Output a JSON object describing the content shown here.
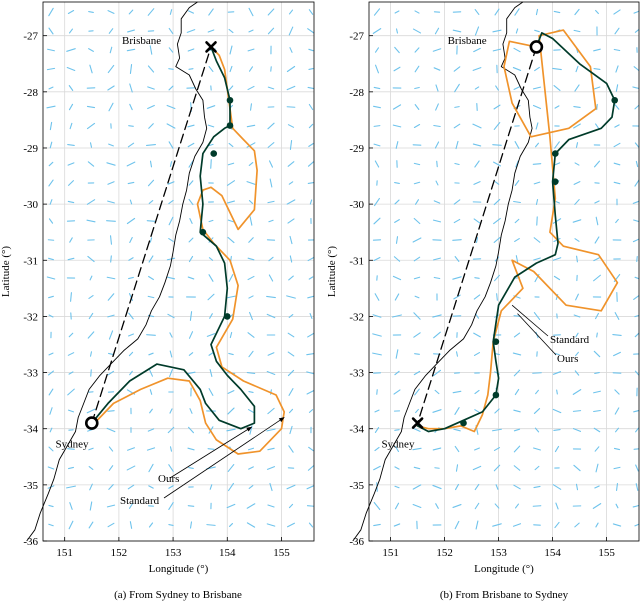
{
  "colors": {
    "ours": "#003b2a",
    "standard": "#f0932b",
    "straight": "#000000",
    "current_arrows": "#6ec3ec",
    "grid": "#d9d9d9"
  },
  "chart_data": [
    {
      "type": "line",
      "panel": "a",
      "caption": "(a) From Sydney to Brisbane",
      "xlabel": "Longitude (°)",
      "ylabel": "Latitude (°)",
      "xlim": [
        150.6,
        155.6
      ],
      "ylim": [
        -36,
        -26.4
      ],
      "xticks": [
        151,
        152,
        153,
        154,
        155
      ],
      "yticks": [
        -27,
        -28,
        -29,
        -30,
        -31,
        -32,
        -33,
        -34,
        -35,
        -36
      ],
      "grid": true,
      "cities": [
        {
          "name": "Brisbane",
          "x": 153.02,
          "y": -27.47
        },
        {
          "name": "Sydney",
          "x": 151.21,
          "y": -33.87
        }
      ],
      "start": {
        "x": 151.5,
        "y": -33.9,
        "marker": "circle"
      },
      "end": {
        "x": 153.7,
        "y": -27.2,
        "marker": "cross"
      },
      "annotations": [
        {
          "text": "Ours",
          "target": [
            154.45,
            -33.97
          ]
        },
        {
          "text": "Standard",
          "target": [
            155.05,
            -33.8
          ]
        }
      ],
      "series": [
        {
          "name": "Ours",
          "color": "#003b2a",
          "x": [
            151.5,
            151.8,
            152.2,
            152.7,
            153.2,
            153.5,
            153.6,
            153.85,
            154.25,
            154.5,
            154.5,
            154.25,
            154.0,
            153.8,
            153.7,
            153.95,
            154.0,
            153.95,
            153.8,
            153.5,
            153.55,
            153.5,
            153.55,
            153.75,
            153.95,
            154.05,
            154.05,
            153.95,
            153.8,
            153.7
          ],
          "y": [
            -33.9,
            -33.55,
            -33.15,
            -32.85,
            -32.95,
            -33.3,
            -33.55,
            -33.85,
            -34.0,
            -33.9,
            -33.6,
            -33.3,
            -33.05,
            -32.8,
            -32.5,
            -32.0,
            -31.5,
            -31.05,
            -30.75,
            -30.5,
            -30.0,
            -29.5,
            -29.1,
            -28.8,
            -28.65,
            -28.6,
            -28.15,
            -27.75,
            -27.45,
            -27.2
          ]
        },
        {
          "name": "Standard",
          "color": "#f0932b",
          "x": [
            151.55,
            151.9,
            152.4,
            152.9,
            153.3,
            153.5,
            153.6,
            153.8,
            154.2,
            154.6,
            155.0,
            155.05,
            154.9,
            154.3,
            153.9,
            153.8,
            154.1,
            154.2,
            154.05,
            153.75,
            153.55,
            153.45,
            153.55,
            153.7,
            153.9,
            154.2,
            154.5,
            154.55,
            154.5,
            154.3,
            154.1,
            154.05,
            154.0,
            153.95,
            153.85,
            153.7
          ],
          "y": [
            -33.9,
            -33.55,
            -33.3,
            -33.1,
            -33.15,
            -33.5,
            -33.9,
            -34.2,
            -34.45,
            -34.4,
            -34.0,
            -33.7,
            -33.4,
            -33.15,
            -32.9,
            -32.55,
            -32.05,
            -31.45,
            -31.0,
            -30.7,
            -30.45,
            -30.0,
            -29.75,
            -29.7,
            -29.85,
            -30.45,
            -30.1,
            -29.4,
            -29.05,
            -28.85,
            -28.65,
            -28.3,
            -27.95,
            -27.6,
            -27.35,
            -27.2
          ]
        },
        {
          "name": "",
          "style": "dashed",
          "color": "#000000",
          "x": [
            151.5,
            153.7
          ],
          "y": [
            -33.9,
            -27.2
          ]
        }
      ],
      "waypoints": {
        "x": [
          154.05,
          154.05,
          153.75,
          153.55,
          154.0
        ],
        "y": [
          -28.15,
          -28.6,
          -29.1,
          -30.5,
          -32.0
        ]
      }
    },
    {
      "type": "line",
      "panel": "b",
      "caption": "(b) From Brisbane to Sydney",
      "xlabel": "Longitude (°)",
      "ylabel": "Latitude (°)",
      "xlim": [
        150.6,
        155.6
      ],
      "ylim": [
        -36,
        -26.4
      ],
      "xticks": [
        151,
        152,
        153,
        154,
        155
      ],
      "yticks": [
        -27,
        -28,
        -29,
        -30,
        -31,
        -32,
        -33,
        -34,
        -35,
        -36
      ],
      "grid": true,
      "cities": [
        {
          "name": "Brisbane",
          "x": 153.02,
          "y": -27.47
        },
        {
          "name": "Sydney",
          "x": 151.21,
          "y": -33.87
        }
      ],
      "start": {
        "x": 153.7,
        "y": -27.2,
        "marker": "circle"
      },
      "end": {
        "x": 151.5,
        "y": -33.9,
        "marker": "cross"
      },
      "annotations": [
        {
          "text": "Standard",
          "target": [
            153.25,
            -31.8
          ]
        },
        {
          "text": "Ours",
          "target": [
            153.35,
            -31.95
          ]
        }
      ],
      "series": [
        {
          "name": "Ours",
          "color": "#003b2a",
          "x": [
            153.7,
            153.8,
            154.0,
            154.5,
            155.0,
            155.15,
            155.1,
            154.9,
            154.6,
            154.3,
            154.05,
            154.0,
            154.05,
            154.1,
            154.05,
            153.7,
            153.3,
            153.0,
            152.9,
            152.95,
            153.0,
            152.95,
            152.7,
            152.35,
            152.0,
            151.7,
            151.5
          ],
          "y": [
            -27.2,
            -26.95,
            -27.05,
            -27.5,
            -27.85,
            -28.15,
            -28.45,
            -28.65,
            -28.75,
            -28.85,
            -29.1,
            -29.6,
            -30.2,
            -30.7,
            -30.9,
            -31.05,
            -31.3,
            -31.8,
            -32.45,
            -32.8,
            -33.1,
            -33.4,
            -33.7,
            -33.85,
            -34.0,
            -34.05,
            -33.95
          ]
        },
        {
          "name": "Standard",
          "color": "#f0932b",
          "x": [
            153.7,
            153.2,
            153.1,
            153.25,
            153.6,
            154.3,
            154.8,
            154.7,
            154.2,
            153.75,
            153.95,
            154.05,
            153.95,
            154.2,
            154.85,
            155.2,
            154.9,
            154.25,
            153.65,
            153.25,
            153.45,
            153.3,
            153.05,
            152.9,
            152.85,
            152.8,
            152.7,
            152.55,
            152.3,
            152.0,
            151.7,
            151.5
          ],
          "y": [
            -27.2,
            -27.1,
            -27.55,
            -28.2,
            -28.8,
            -28.65,
            -28.3,
            -27.55,
            -26.9,
            -27.0,
            -28.8,
            -29.9,
            -30.5,
            -30.75,
            -30.9,
            -31.4,
            -31.9,
            -31.8,
            -31.2,
            -31.0,
            -31.5,
            -31.65,
            -31.9,
            -32.45,
            -33.0,
            -33.4,
            -33.75,
            -34.05,
            -33.95,
            -34.0,
            -34.0,
            -33.95
          ]
        },
        {
          "name": "",
          "style": "dashed",
          "color": "#000000",
          "x": [
            153.7,
            151.5
          ],
          "y": [
            -27.2,
            -33.9
          ]
        }
      ],
      "waypoints": {
        "x": [
          155.15,
          154.05,
          154.05,
          152.95,
          152.95,
          152.35
        ],
        "y": [
          -28.15,
          -29.1,
          -29.6,
          -32.45,
          -33.4,
          -33.9
        ]
      }
    }
  ]
}
